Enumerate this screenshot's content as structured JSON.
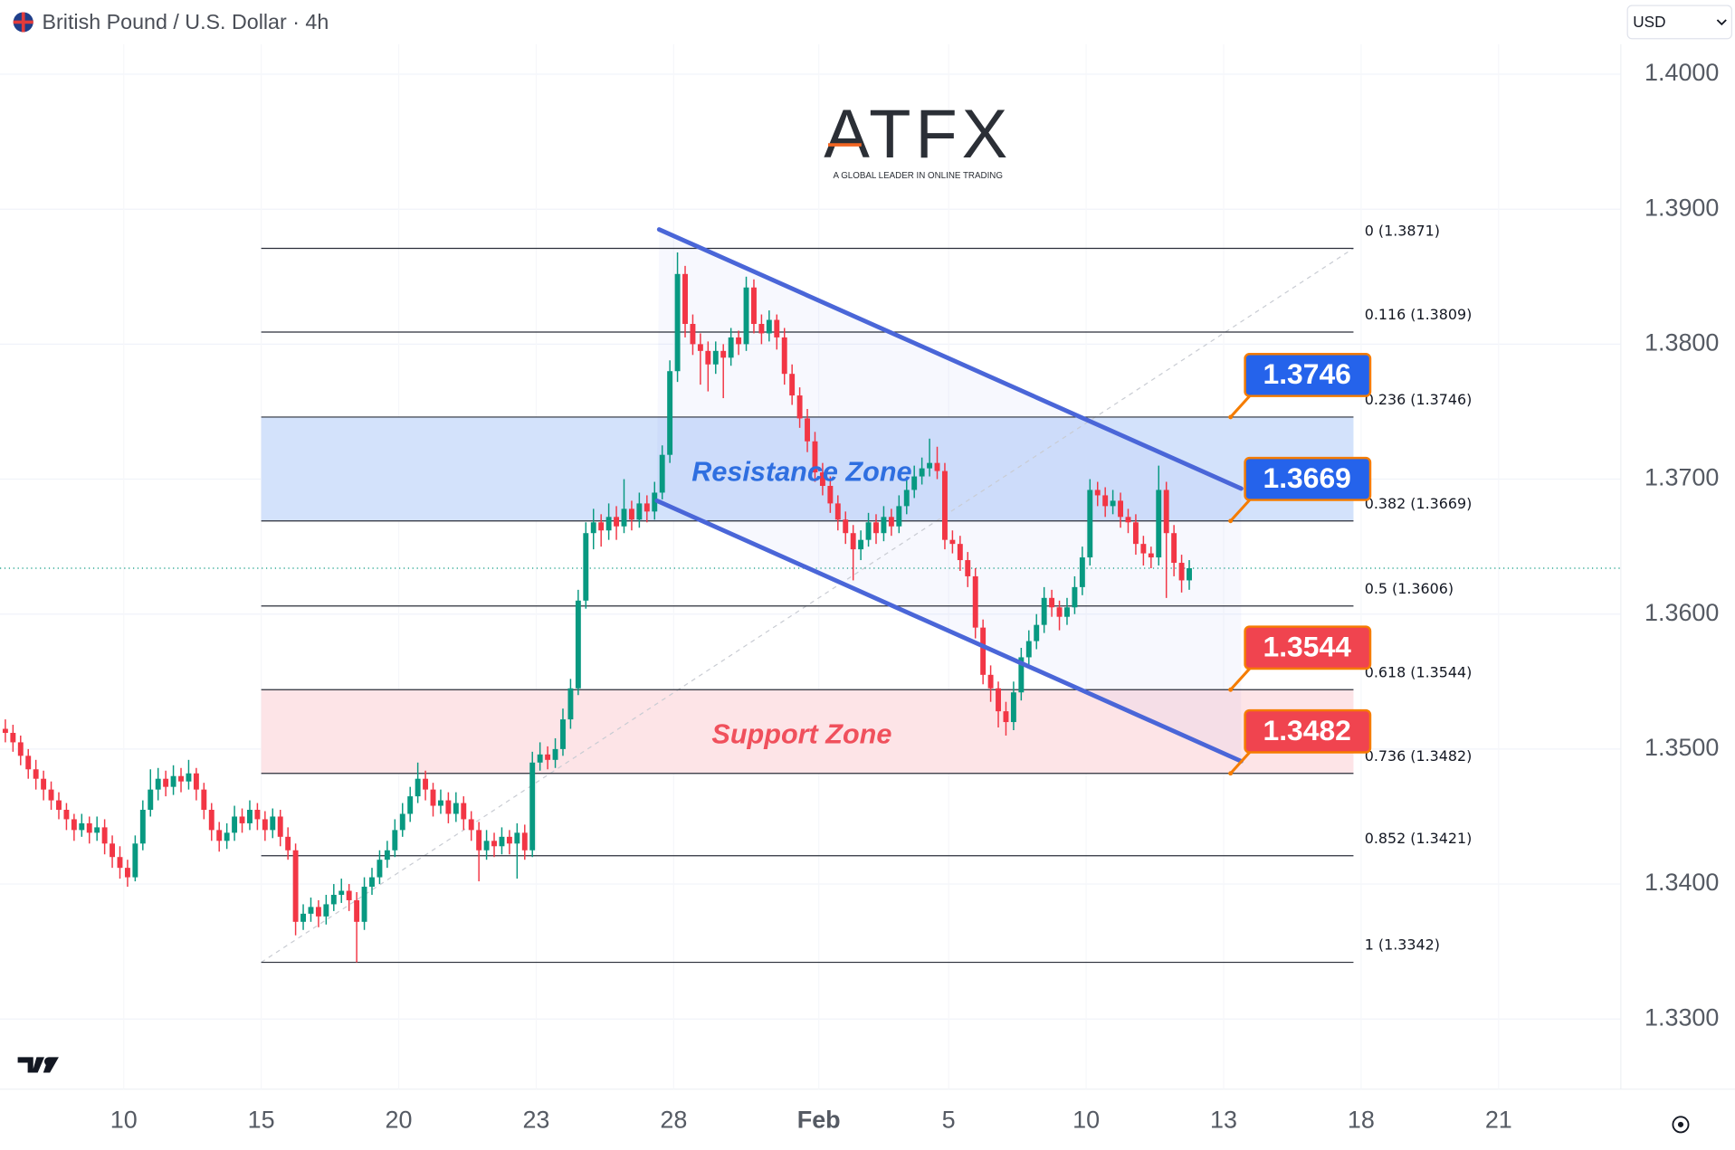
{
  "header": {
    "symbol": "British Pound / U.S. Dollar · 4h",
    "currency": "USD"
  },
  "watermark": {
    "logo": "ATFX",
    "tagline": "A GLOBAL LEADER IN ONLINE TRADING"
  },
  "chart_data": {
    "type": "candlestick",
    "up_color": "#089981",
    "down_color": "#f23645",
    "xlim": [
      -0.7,
      211.5
    ],
    "ylim": [
      1.3248,
      1.4055
    ],
    "grid": true,
    "xticks": [
      {
        "value": 15.5,
        "label": "10"
      },
      {
        "value": 33.5,
        "label": "15"
      },
      {
        "value": 51.5,
        "label": "20"
      },
      {
        "value": 69.5,
        "label": "23"
      },
      {
        "value": 87.5,
        "label": "28"
      },
      {
        "value": 106.5,
        "label": "Feb"
      },
      {
        "value": 123.5,
        "label": "5"
      },
      {
        "value": 141.5,
        "label": "10"
      },
      {
        "value": 159.5,
        "label": "13"
      },
      {
        "value": 177.5,
        "label": "18"
      },
      {
        "value": 195.5,
        "label": "21"
      }
    ],
    "yticks": [
      {
        "value": 1.33,
        "label": "1.3300"
      },
      {
        "value": 1.34,
        "label": "1.3400"
      },
      {
        "value": 1.35,
        "label": "1.3500"
      },
      {
        "value": 1.36,
        "label": "1.3600"
      },
      {
        "value": 1.37,
        "label": "1.3700"
      },
      {
        "value": 1.38,
        "label": "1.3800"
      },
      {
        "value": 1.39,
        "label": "1.3900"
      },
      {
        "value": 1.4,
        "label": "1.4000"
      }
    ],
    "ohlc": [
      [
        1.3515,
        1.3522,
        1.3505,
        1.3512
      ],
      [
        1.3512,
        1.3518,
        1.3498,
        1.3505
      ],
      [
        1.3505,
        1.351,
        1.3488,
        1.3495
      ],
      [
        1.3495,
        1.35,
        1.3478,
        1.3485
      ],
      [
        1.3485,
        1.3492,
        1.347,
        1.3478
      ],
      [
        1.3478,
        1.3484,
        1.3462,
        1.347
      ],
      [
        1.347,
        1.3476,
        1.3455,
        1.3462
      ],
      [
        1.3462,
        1.3468,
        1.3448,
        1.3455
      ],
      [
        1.3455,
        1.346,
        1.344,
        1.3448
      ],
      [
        1.3448,
        1.3452,
        1.3432,
        1.344
      ],
      [
        1.344,
        1.3452,
        1.3435,
        1.3445
      ],
      [
        1.3445,
        1.345,
        1.343,
        1.3438
      ],
      [
        1.3438,
        1.345,
        1.3432,
        1.3442
      ],
      [
        1.3442,
        1.3448,
        1.3422,
        1.343
      ],
      [
        1.343,
        1.3436,
        1.3412,
        1.342
      ],
      [
        1.342,
        1.3428,
        1.3404,
        1.3412
      ],
      [
        1.3412,
        1.3418,
        1.3398,
        1.3405
      ],
      [
        1.3405,
        1.3436,
        1.3402,
        1.343
      ],
      [
        1.343,
        1.3462,
        1.3425,
        1.3455
      ],
      [
        1.3455,
        1.3485,
        1.345,
        1.347
      ],
      [
        1.347,
        1.3486,
        1.3462,
        1.3478
      ],
      [
        1.3478,
        1.3484,
        1.3465,
        1.3472
      ],
      [
        1.3472,
        1.3488,
        1.3466,
        1.348
      ],
      [
        1.348,
        1.3486,
        1.3468,
        1.3476
      ],
      [
        1.3476,
        1.3492,
        1.347,
        1.3482
      ],
      [
        1.3482,
        1.3486,
        1.3462,
        1.347
      ],
      [
        1.347,
        1.3475,
        1.3448,
        1.3455
      ],
      [
        1.3455,
        1.346,
        1.3432,
        1.344
      ],
      [
        1.344,
        1.3446,
        1.3424,
        1.3432
      ],
      [
        1.3432,
        1.3445,
        1.3426,
        1.3438
      ],
      [
        1.3438,
        1.3458,
        1.3432,
        1.345
      ],
      [
        1.345,
        1.3456,
        1.3438,
        1.3445
      ],
      [
        1.3445,
        1.3462,
        1.344,
        1.3455
      ],
      [
        1.3455,
        1.346,
        1.344,
        1.3448
      ],
      [
        1.3448,
        1.3454,
        1.3432,
        1.344
      ],
      [
        1.344,
        1.3456,
        1.3434,
        1.345
      ],
      [
        1.345,
        1.3455,
        1.3428,
        1.3435
      ],
      [
        1.3435,
        1.3442,
        1.3418,
        1.3425
      ],
      [
        1.3425,
        1.343,
        1.3362,
        1.3372
      ],
      [
        1.3372,
        1.3385,
        1.3366,
        1.3378
      ],
      [
        1.3378,
        1.339,
        1.3372,
        1.3383
      ],
      [
        1.3383,
        1.3388,
        1.3368,
        1.3376
      ],
      [
        1.3376,
        1.3392,
        1.337,
        1.3385
      ],
      [
        1.3385,
        1.34,
        1.338,
        1.3392
      ],
      [
        1.3392,
        1.3404,
        1.3386,
        1.3395
      ],
      [
        1.3395,
        1.34,
        1.338,
        1.3388
      ],
      [
        1.3388,
        1.3394,
        1.3342,
        1.3372
      ],
      [
        1.3372,
        1.3405,
        1.3366,
        1.3398
      ],
      [
        1.3398,
        1.3412,
        1.3392,
        1.3405
      ],
      [
        1.3405,
        1.3425,
        1.34,
        1.3418
      ],
      [
        1.3418,
        1.3432,
        1.3412,
        1.3425
      ],
      [
        1.3425,
        1.3448,
        1.342,
        1.344
      ],
      [
        1.344,
        1.346,
        1.3435,
        1.3452
      ],
      [
        1.3452,
        1.3472,
        1.3446,
        1.3465
      ],
      [
        1.3465,
        1.349,
        1.346,
        1.3478
      ],
      [
        1.3478,
        1.3484,
        1.3462,
        1.347
      ],
      [
        1.347,
        1.3475,
        1.345,
        1.3458
      ],
      [
        1.3458,
        1.347,
        1.3452,
        1.3462
      ],
      [
        1.3462,
        1.3468,
        1.3445,
        1.3452
      ],
      [
        1.3452,
        1.3468,
        1.3446,
        1.346
      ],
      [
        1.346,
        1.3465,
        1.344,
        1.3448
      ],
      [
        1.3448,
        1.3454,
        1.3432,
        1.344
      ],
      [
        1.344,
        1.3446,
        1.3402,
        1.3425
      ],
      [
        1.3425,
        1.344,
        1.3418,
        1.3432
      ],
      [
        1.3432,
        1.3438,
        1.342,
        1.3428
      ],
      [
        1.3428,
        1.3442,
        1.3422,
        1.3435
      ],
      [
        1.3435,
        1.344,
        1.3422,
        1.343
      ],
      [
        1.343,
        1.3445,
        1.3404,
        1.3438
      ],
      [
        1.3438,
        1.3444,
        1.3418,
        1.3425
      ],
      [
        1.3425,
        1.3498,
        1.342,
        1.349
      ],
      [
        1.349,
        1.3505,
        1.3484,
        1.3496
      ],
      [
        1.3496,
        1.3502,
        1.3485,
        1.3492
      ],
      [
        1.3492,
        1.3508,
        1.3486,
        1.35
      ],
      [
        1.35,
        1.353,
        1.3495,
        1.3522
      ],
      [
        1.3522,
        1.3552,
        1.3515,
        1.3545
      ],
      [
        1.3545,
        1.3618,
        1.354,
        1.361
      ],
      [
        1.361,
        1.3668,
        1.3604,
        1.366
      ],
      [
        1.366,
        1.3678,
        1.3648,
        1.3668
      ],
      [
        1.3668,
        1.3674,
        1.365,
        1.3662
      ],
      [
        1.3662,
        1.3682,
        1.3655,
        1.3672
      ],
      [
        1.3672,
        1.368,
        1.3655,
        1.3665
      ],
      [
        1.3665,
        1.37,
        1.366,
        1.3678
      ],
      [
        1.3678,
        1.3684,
        1.3662,
        1.367
      ],
      [
        1.367,
        1.369,
        1.3664,
        1.3682
      ],
      [
        1.3682,
        1.3688,
        1.3668,
        1.3676
      ],
      [
        1.3676,
        1.3698,
        1.367,
        1.369
      ],
      [
        1.369,
        1.3725,
        1.3685,
        1.3718
      ],
      [
        1.3718,
        1.3788,
        1.3712,
        1.378
      ],
      [
        1.378,
        1.3868,
        1.3772,
        1.3852
      ],
      [
        1.3852,
        1.3858,
        1.3805,
        1.3815
      ],
      [
        1.3815,
        1.3822,
        1.3792,
        1.38
      ],
      [
        1.38,
        1.3808,
        1.377,
        1.3795
      ],
      [
        1.3795,
        1.3802,
        1.3765,
        1.3785
      ],
      [
        1.3785,
        1.3802,
        1.3778,
        1.3795
      ],
      [
        1.3795,
        1.38,
        1.376,
        1.379
      ],
      [
        1.379,
        1.3812,
        1.3784,
        1.3805
      ],
      [
        1.3805,
        1.381,
        1.3792,
        1.38
      ],
      [
        1.38,
        1.385,
        1.3795,
        1.3842
      ],
      [
        1.3842,
        1.3848,
        1.3808,
        1.3815
      ],
      [
        1.3815,
        1.3822,
        1.38,
        1.3808
      ],
      [
        1.3808,
        1.3825,
        1.3802,
        1.3818
      ],
      [
        1.3818,
        1.3822,
        1.3796,
        1.3805
      ],
      [
        1.3805,
        1.3812,
        1.377,
        1.3778
      ],
      [
        1.3778,
        1.3785,
        1.3755,
        1.3762
      ],
      [
        1.3762,
        1.3768,
        1.3738,
        1.3745
      ],
      [
        1.3745,
        1.3752,
        1.372,
        1.3728
      ],
      [
        1.3728,
        1.3735,
        1.3698,
        1.3705
      ],
      [
        1.3705,
        1.3712,
        1.3688,
        1.3695
      ],
      [
        1.3695,
        1.3702,
        1.3675,
        1.3682
      ],
      [
        1.3682,
        1.3688,
        1.3662,
        1.367
      ],
      [
        1.367,
        1.3676,
        1.3652,
        1.366
      ],
      [
        1.366,
        1.3666,
        1.3625,
        1.3648
      ],
      [
        1.3648,
        1.3662,
        1.364,
        1.3655
      ],
      [
        1.3655,
        1.3675,
        1.365,
        1.3668
      ],
      [
        1.3668,
        1.3674,
        1.3652,
        1.366
      ],
      [
        1.366,
        1.368,
        1.3654,
        1.3672
      ],
      [
        1.3672,
        1.3678,
        1.3658,
        1.3665
      ],
      [
        1.3665,
        1.3688,
        1.366,
        1.368
      ],
      [
        1.368,
        1.37,
        1.3674,
        1.3692
      ],
      [
        1.3692,
        1.371,
        1.3686,
        1.3702
      ],
      [
        1.3702,
        1.3716,
        1.3696,
        1.3708
      ],
      [
        1.3708,
        1.373,
        1.3702,
        1.3712
      ],
      [
        1.3712,
        1.3724,
        1.37,
        1.3706
      ],
      [
        1.3706,
        1.3712,
        1.3648,
        1.3655
      ],
      [
        1.3655,
        1.3662,
        1.3645,
        1.3652
      ],
      [
        1.3652,
        1.3658,
        1.3632,
        1.364
      ],
      [
        1.364,
        1.3646,
        1.362,
        1.3628
      ],
      [
        1.3628,
        1.3634,
        1.3582,
        1.359
      ],
      [
        1.359,
        1.3596,
        1.3548,
        1.3555
      ],
      [
        1.3555,
        1.3562,
        1.3535,
        1.3545
      ],
      [
        1.3545,
        1.355,
        1.3516,
        1.3528
      ],
      [
        1.3528,
        1.3535,
        1.351,
        1.352
      ],
      [
        1.352,
        1.355,
        1.3514,
        1.3542
      ],
      [
        1.3542,
        1.3575,
        1.3536,
        1.3568
      ],
      [
        1.3568,
        1.3588,
        1.3562,
        1.358
      ],
      [
        1.358,
        1.36,
        1.3574,
        1.3592
      ],
      [
        1.3592,
        1.362,
        1.3586,
        1.3612
      ],
      [
        1.3612,
        1.3618,
        1.3598,
        1.3605
      ],
      [
        1.3605,
        1.361,
        1.3588,
        1.3598
      ],
      [
        1.3598,
        1.3612,
        1.3592,
        1.3605
      ],
      [
        1.3605,
        1.3628,
        1.36,
        1.362
      ],
      [
        1.362,
        1.365,
        1.3614,
        1.3642
      ],
      [
        1.3642,
        1.37,
        1.3636,
        1.3692
      ],
      [
        1.3692,
        1.3698,
        1.368,
        1.3688
      ],
      [
        1.3688,
        1.3694,
        1.3672,
        1.368
      ],
      [
        1.368,
        1.3692,
        1.3674,
        1.3684
      ],
      [
        1.3684,
        1.369,
        1.3664,
        1.3672
      ],
      [
        1.3672,
        1.3678,
        1.366,
        1.3668
      ],
      [
        1.3668,
        1.3674,
        1.3644,
        1.3652
      ],
      [
        1.3652,
        1.3658,
        1.3636,
        1.3645
      ],
      [
        1.3645,
        1.365,
        1.3634,
        1.3642
      ],
      [
        1.3642,
        1.371,
        1.3636,
        1.3692
      ],
      [
        1.3692,
        1.3698,
        1.3612,
        1.366
      ],
      [
        1.366,
        1.3666,
        1.3628,
        1.3638
      ],
      [
        1.3638,
        1.3644,
        1.3616,
        1.3625
      ],
      [
        1.3625,
        1.364,
        1.3618,
        1.3634
      ]
    ],
    "fib_range_x": [
      33.5,
      176.5
    ],
    "fib_levels": [
      {
        "label": "0 (1.3871)",
        "value": 1.3871
      },
      {
        "label": "0.116 (1.3809)",
        "value": 1.3809
      },
      {
        "label": "0.236 (1.3746)",
        "value": 1.3746
      },
      {
        "label": "0.382 (1.3669)",
        "value": 1.3669
      },
      {
        "label": "0.5 (1.3606)",
        "value": 1.3606
      },
      {
        "label": "0.618 (1.3544)",
        "value": 1.3544
      },
      {
        "label": "0.736 (1.3482)",
        "value": 1.3482
      },
      {
        "label": "0.852 (1.3421)",
        "value": 1.3421
      },
      {
        "label": "1 (1.3342)",
        "value": 1.3342
      }
    ],
    "zones": [
      {
        "label": "Resistance Zone",
        "low": 1.3669,
        "high": 1.3746,
        "color": "#d3e2fb",
        "text_color": "#2f6fe0"
      },
      {
        "label": "Support Zone",
        "low": 1.3482,
        "high": 1.3544,
        "color": "#fde4e7",
        "text_color": "#f0505c"
      }
    ],
    "channel": [
      {
        "x": [
          85.6,
          161.8
        ],
        "y": [
          1.3885,
          1.3693
        ]
      },
      {
        "x": [
          85.3,
          161.8
        ],
        "y": [
          1.3684,
          1.3491
        ]
      }
    ],
    "channel_color": "#4a66d8",
    "price_tags": [
      {
        "value": 1.3746,
        "color": "#2563eb"
      },
      {
        "value": 1.3669,
        "color": "#2563eb"
      },
      {
        "value": 1.3544,
        "color": "#f0444f"
      },
      {
        "value": 1.3482,
        "color": "#f0444f"
      }
    ]
  }
}
